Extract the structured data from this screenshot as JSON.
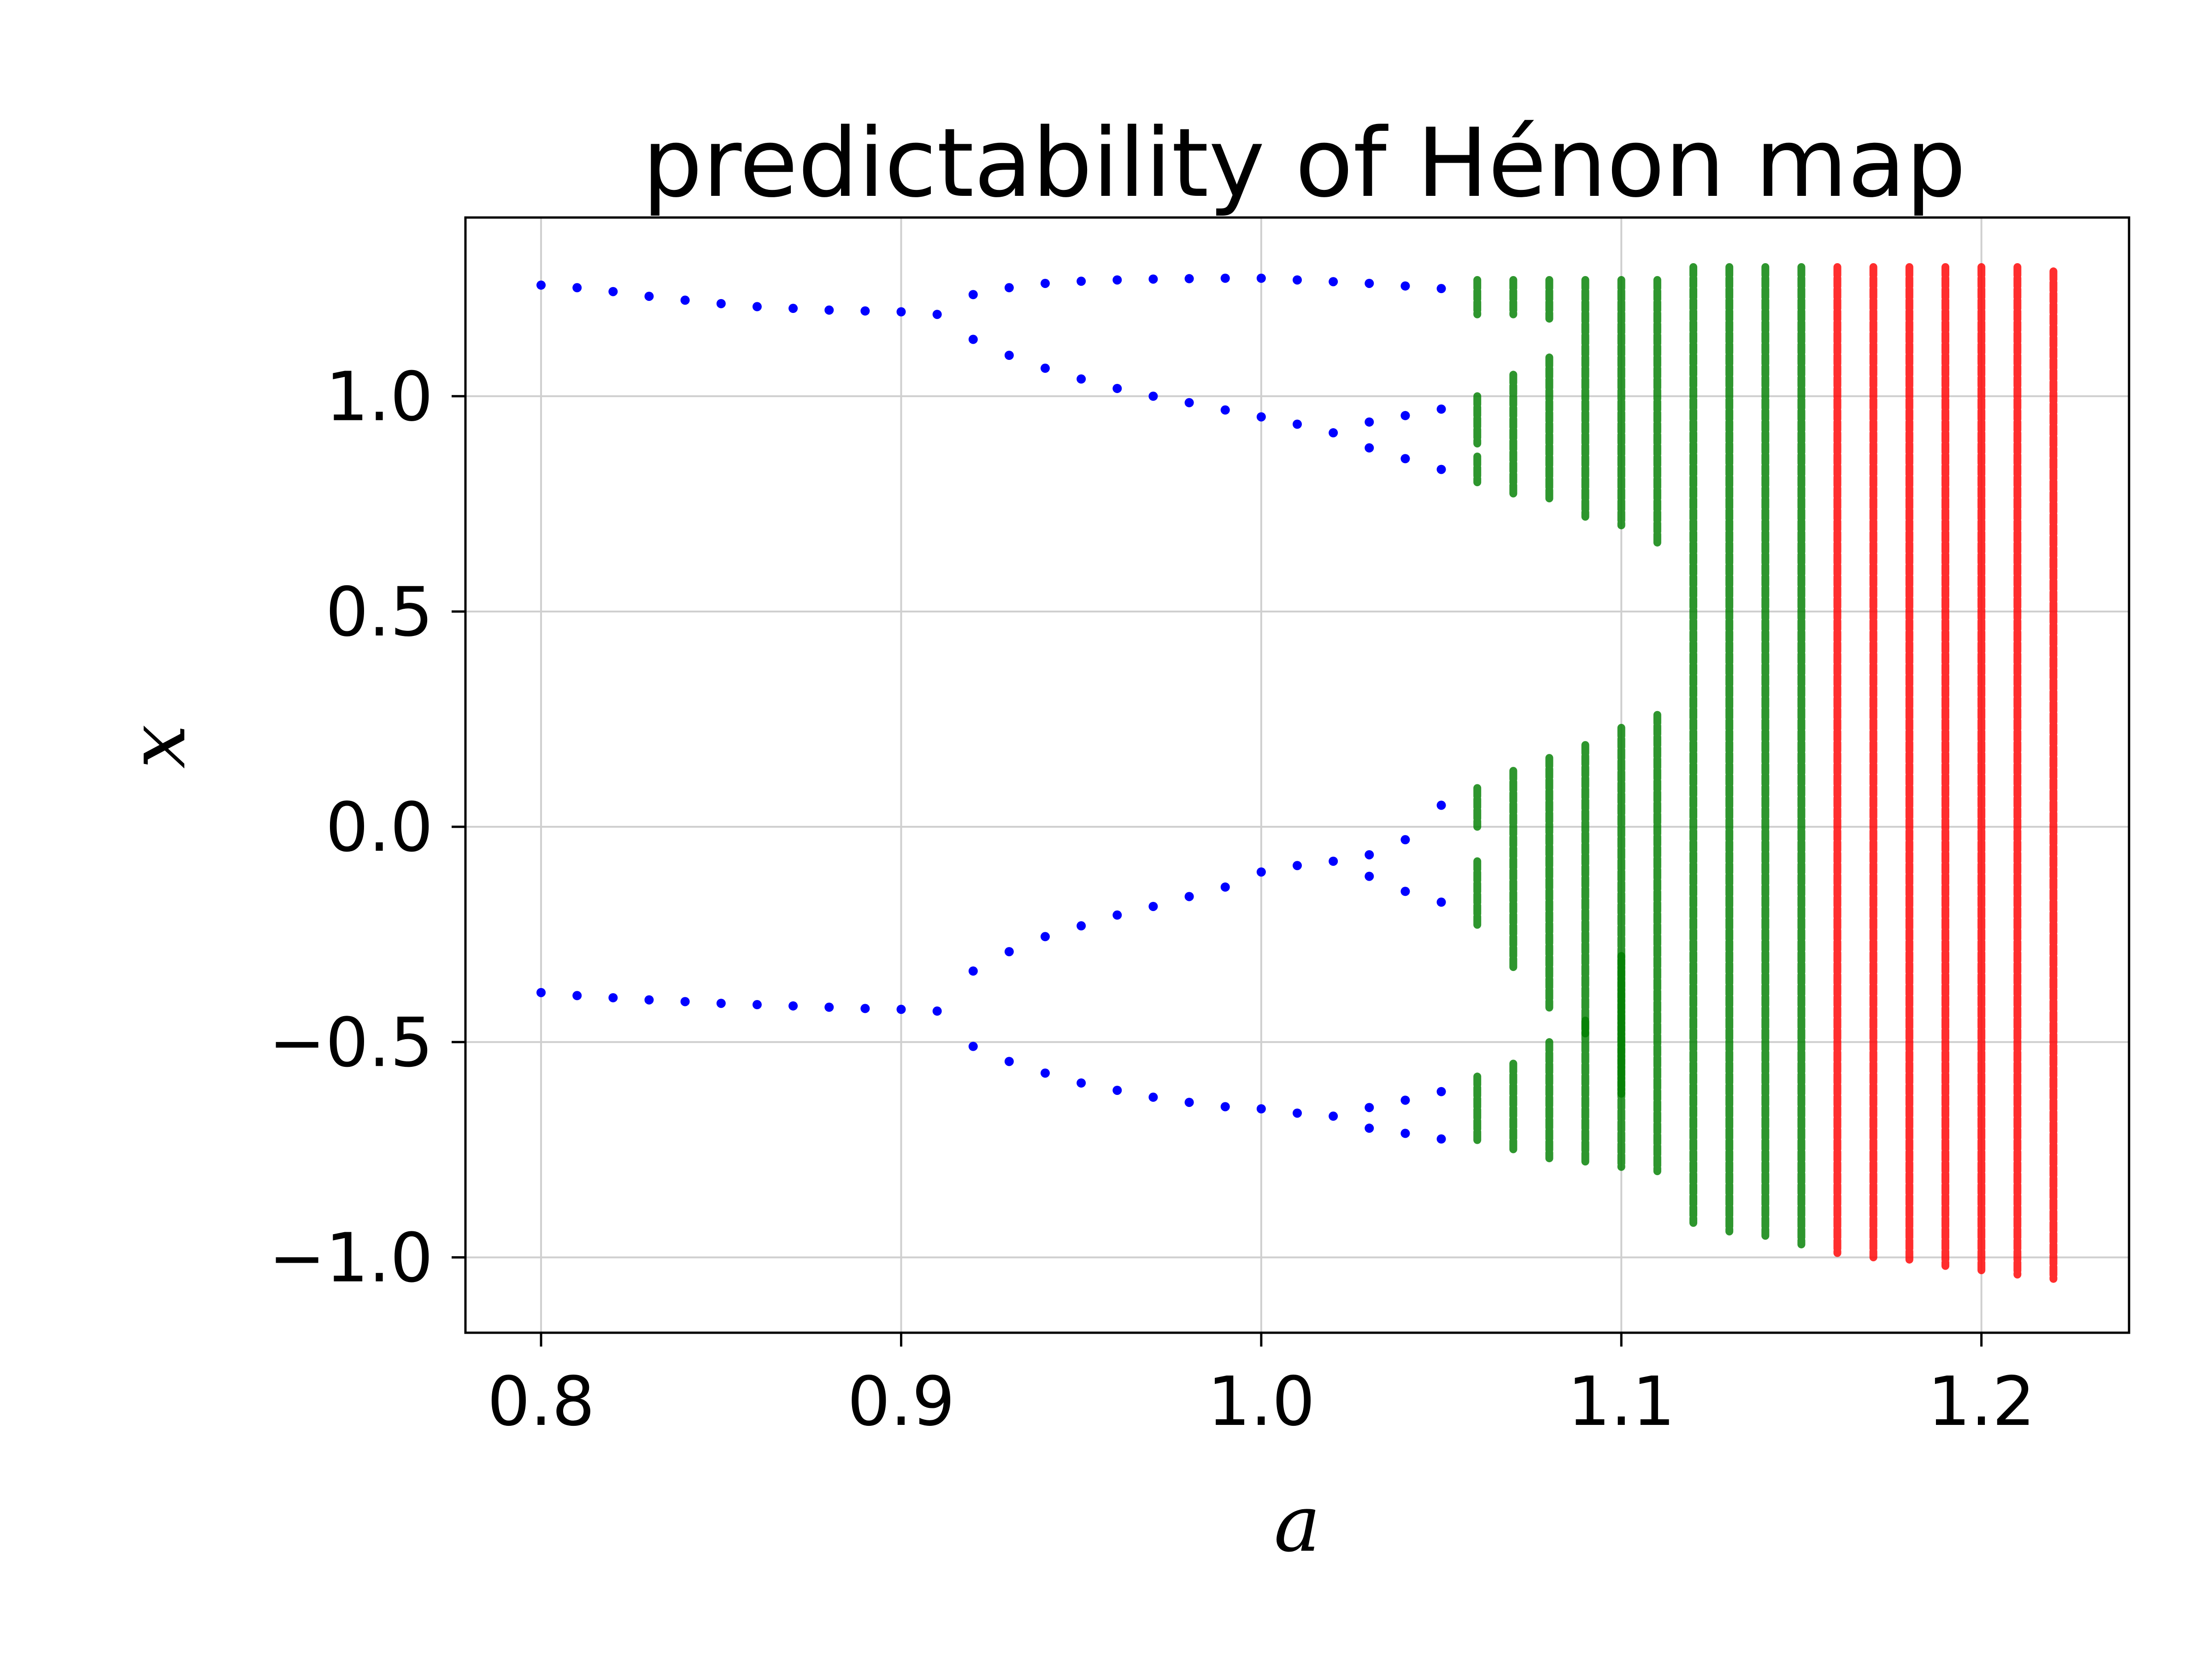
{
  "chart_data": {
    "type": "scatter",
    "title": "predictability of Hénon map",
    "xlabel": "a",
    "ylabel": "x",
    "xlim": [
      0.779,
      1.241
    ],
    "ylim": [
      -1.175,
      1.415
    ],
    "grid": true,
    "x_ticks": [
      "0.8",
      "0.9",
      "1.0",
      "1.1",
      "1.2"
    ],
    "x_tick_values": [
      0.8,
      0.9,
      1.0,
      1.1,
      1.2
    ],
    "y_ticks": [
      "−1.0",
      "−0.5",
      "0.0",
      "0.5",
      "1.0"
    ],
    "y_tick_values": [
      -1.0,
      -0.5,
      0.0,
      0.5,
      1.0
    ],
    "colors": {
      "periodic": "#0000ff",
      "weakly_chaotic": "#007f00",
      "chaotic": "#ff0000"
    },
    "series": [
      {
        "color": "#0000ff",
        "points": [
          [
            0.8,
            1.258
          ],
          [
            0.81,
            1.252
          ],
          [
            0.82,
            1.243
          ],
          [
            0.83,
            1.232
          ],
          [
            0.84,
            1.223
          ],
          [
            0.85,
            1.215
          ],
          [
            0.86,
            1.208
          ],
          [
            0.87,
            1.204
          ],
          [
            0.88,
            1.2
          ],
          [
            0.89,
            1.198
          ],
          [
            0.9,
            1.196
          ],
          [
            0.91,
            1.19
          ],
          [
            0.8,
            -0.385
          ],
          [
            0.81,
            -0.392
          ],
          [
            0.82,
            -0.397
          ],
          [
            0.83,
            -0.402
          ],
          [
            0.84,
            -0.406
          ],
          [
            0.85,
            -0.41
          ],
          [
            0.86,
            -0.413
          ],
          [
            0.87,
            -0.416
          ],
          [
            0.88,
            -0.419
          ],
          [
            0.89,
            -0.422
          ],
          [
            0.9,
            -0.424
          ],
          [
            0.91,
            -0.428
          ],
          [
            0.92,
            1.236
          ],
          [
            0.93,
            1.252
          ],
          [
            0.94,
            1.262
          ],
          [
            0.95,
            1.267
          ],
          [
            0.96,
            1.27
          ],
          [
            0.97,
            1.272
          ],
          [
            0.98,
            1.273
          ],
          [
            0.99,
            1.274
          ],
          [
            1.0,
            1.274
          ],
          [
            1.01,
            1.27
          ],
          [
            1.02,
            1.266
          ],
          [
            1.03,
            1.262
          ],
          [
            1.04,
            1.256
          ],
          [
            1.05,
            1.25
          ],
          [
            0.92,
            1.132
          ],
          [
            0.93,
            1.095
          ],
          [
            0.94,
            1.065
          ],
          [
            0.95,
            1.04
          ],
          [
            0.96,
            1.018
          ],
          [
            0.97,
            1.0
          ],
          [
            0.98,
            0.985
          ],
          [
            0.99,
            0.968
          ],
          [
            1.0,
            0.952
          ],
          [
            1.01,
            0.935
          ],
          [
            1.02,
            0.915
          ],
          [
            1.03,
            0.94
          ],
          [
            1.04,
            0.955
          ],
          [
            1.05,
            0.97
          ],
          [
            1.03,
            0.88
          ],
          [
            1.04,
            0.855
          ],
          [
            1.05,
            0.83
          ],
          [
            0.92,
            -0.335
          ],
          [
            0.93,
            -0.29
          ],
          [
            0.94,
            -0.255
          ],
          [
            0.95,
            -0.23
          ],
          [
            0.96,
            -0.205
          ],
          [
            0.97,
            -0.185
          ],
          [
            0.98,
            -0.162
          ],
          [
            0.99,
            -0.14
          ],
          [
            1.0,
            -0.105
          ],
          [
            1.01,
            -0.09
          ],
          [
            1.02,
            -0.08
          ],
          [
            1.03,
            -0.065
          ],
          [
            1.04,
            -0.03
          ],
          [
            1.05,
            0.05
          ],
          [
            1.03,
            -0.115
          ],
          [
            1.04,
            -0.15
          ],
          [
            1.05,
            -0.175
          ],
          [
            0.92,
            -0.51
          ],
          [
            0.93,
            -0.545
          ],
          [
            0.94,
            -0.572
          ],
          [
            0.95,
            -0.595
          ],
          [
            0.96,
            -0.612
          ],
          [
            0.97,
            -0.628
          ],
          [
            0.98,
            -0.64
          ],
          [
            0.99,
            -0.65
          ],
          [
            1.0,
            -0.655
          ],
          [
            1.01,
            -0.665
          ],
          [
            1.02,
            -0.672
          ],
          [
            1.03,
            -0.652
          ],
          [
            1.04,
            -0.635
          ],
          [
            1.05,
            -0.615
          ],
          [
            1.03,
            -0.7
          ],
          [
            1.04,
            -0.712
          ],
          [
            1.05,
            -0.725
          ]
        ]
      },
      {
        "color": "#007f00",
        "segments": [
          [
            1.06,
            1.19,
            1.27
          ],
          [
            1.06,
            0.89,
            1.0
          ],
          [
            1.06,
            0.8,
            0.86
          ],
          [
            1.06,
            -0.23,
            -0.08
          ],
          [
            1.06,
            0.0,
            0.09
          ],
          [
            1.06,
            -0.73,
            -0.58
          ],
          [
            1.07,
            1.19,
            1.27
          ],
          [
            1.07,
            0.77,
            1.05
          ],
          [
            1.07,
            -0.33,
            0.13
          ],
          [
            1.07,
            -0.75,
            -0.55
          ],
          [
            1.08,
            1.18,
            1.27
          ],
          [
            1.08,
            0.76,
            1.09
          ],
          [
            1.08,
            -0.42,
            0.16
          ],
          [
            1.08,
            -0.77,
            -0.5
          ],
          [
            1.09,
            0.72,
            1.27
          ],
          [
            1.09,
            -0.48,
            0.19
          ],
          [
            1.09,
            -0.78,
            -0.45
          ],
          [
            1.1,
            0.7,
            1.27
          ],
          [
            1.1,
            -0.62,
            0.23
          ],
          [
            1.1,
            -0.79,
            -0.3
          ],
          [
            1.11,
            0.66,
            1.27
          ],
          [
            1.11,
            -0.8,
            0.26
          ],
          [
            1.12,
            -0.92,
            1.3
          ],
          [
            1.13,
            -0.94,
            1.3
          ],
          [
            1.14,
            -0.95,
            1.3
          ],
          [
            1.15,
            -0.97,
            1.3
          ]
        ]
      },
      {
        "color": "#ff0000",
        "segments": [
          [
            1.16,
            -0.99,
            1.3
          ],
          [
            1.17,
            -1.0,
            1.3
          ],
          [
            1.18,
            -1.01,
            1.3
          ],
          [
            1.19,
            -1.02,
            1.3
          ],
          [
            1.2,
            -1.03,
            1.3
          ],
          [
            1.21,
            -1.04,
            1.3
          ],
          [
            1.22,
            -1.05,
            1.29
          ]
        ]
      }
    ]
  }
}
